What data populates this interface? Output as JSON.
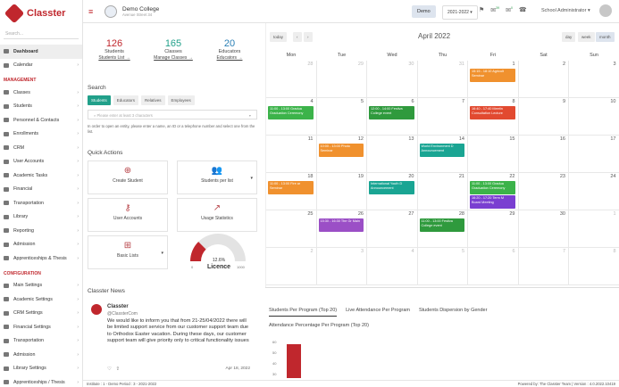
{
  "app": {
    "name": "Classter",
    "search_placeholder": "Search..."
  },
  "sidebar": {
    "items": [
      {
        "label": "Dashboard",
        "active": true
      },
      {
        "label": "Calendar"
      }
    ],
    "management_title": "MANAGEMENT",
    "management": [
      "Classes",
      "Students",
      "Personnel & Contacts",
      "Enrollments",
      "CRM",
      "User Accounts",
      "Academic Tasks",
      "Financial",
      "Transportation",
      "Library",
      "Reporting",
      "Admission",
      "Apprenticeships & Thesis"
    ],
    "configuration_title": "CONFIGURATION",
    "configuration": [
      "Main Settings",
      "Academic Settings",
      "CRM Settings",
      "Financial Settings",
      "Transportation",
      "Admission",
      "Library Settings",
      "Apprenticeships / Thesis"
    ]
  },
  "header": {
    "college": "Demo College",
    "address": "Avenue Street 34",
    "demo_btn": "Demo",
    "year": "2021-2022",
    "badge1": "39",
    "badge2": "0",
    "user": "School Administrator"
  },
  "stats": [
    {
      "n": "126",
      "label": "Students",
      "link": "Students List →"
    },
    {
      "n": "165",
      "label": "Classes",
      "link": "Manage Classes →"
    },
    {
      "n": "20",
      "label": "Educators",
      "link": "Educators →"
    }
  ],
  "search": {
    "title": "Search",
    "tabs": [
      "Students",
      "Educators",
      "Relatives",
      "Employees"
    ],
    "placeholder": "Please enter at least 3 characters",
    "hint": "In order to open an entity, please enter a name, an ID or a telephone number and select one from the list."
  },
  "quick": {
    "title": "Quick Actions",
    "items": [
      "Create Student",
      "Students per list",
      "User Accounts",
      "Usage Statistics",
      "Basic Lists"
    ]
  },
  "licence": {
    "value": "12.6%",
    "label": "Licence",
    "min": "0",
    "max": "1000",
    "fraction": 0.126
  },
  "news": {
    "title": "Classter News",
    "name": "Classter",
    "handle": "@ClassterCom",
    "text": "We would like to inform you that from 21-25/04/2022 there will be limited support service from our customer support team due to Orthodox Easter vacation. During these days, our customer support team will give priority only to critical functionality issues",
    "date": "Apr 18, 2022"
  },
  "calendar": {
    "today": "today",
    "prev": "‹",
    "next": "›",
    "title": "April 2022",
    "views": [
      "day",
      "week",
      "month"
    ],
    "dow": [
      "Mon",
      "Tue",
      "Wed",
      "Thu",
      "Fri",
      "Sat",
      "Sun"
    ],
    "weeks": [
      [
        "28",
        "29",
        "30",
        "31",
        "1",
        "2",
        "3"
      ],
      [
        "4",
        "5",
        "6",
        "7",
        "8",
        "9",
        "10"
      ],
      [
        "11",
        "12",
        "13",
        "14",
        "15",
        "16",
        "17"
      ],
      [
        "18",
        "19",
        "20",
        "21",
        "22",
        "23",
        "24"
      ],
      [
        "25",
        "26",
        "27",
        "28",
        "29",
        "30",
        "1"
      ],
      [
        "2",
        "3",
        "4",
        "5",
        "6",
        "7",
        "8"
      ]
    ],
    "events": [
      {
        "w": 0,
        "d": 4,
        "i": 0,
        "text": "15:15 - 18:10 Agricult Seminar",
        "color": "#f0912e"
      },
      {
        "w": 1,
        "d": 0,
        "i": 0,
        "text": "11:00 - 13:00 Gradua Graduation Ceremony",
        "color": "#3cb34a"
      },
      {
        "w": 1,
        "d": 2,
        "i": 0,
        "text": "12:00 - 14:00 Festiva College event",
        "color": "#2f9a3d"
      },
      {
        "w": 1,
        "d": 4,
        "i": 0,
        "text": "16:40 - 17:40 Meetin Consultation Lecture",
        "color": "#e24a30"
      },
      {
        "w": 2,
        "d": 1,
        "i": 0,
        "text": "10:00 - 13:00 Photo Seminar",
        "color": "#f0912e"
      },
      {
        "w": 2,
        "d": 3,
        "i": 0,
        "text": "World Environment D Announcement",
        "color": "#1aa593"
      },
      {
        "w": 3,
        "d": 0,
        "i": 0,
        "text": "11:00 - 13:00 Fire ar Seminar",
        "color": "#f0912e"
      },
      {
        "w": 3,
        "d": 2,
        "i": 0,
        "text": "International Youth D Announcement",
        "color": "#1aa593"
      },
      {
        "w": 3,
        "d": 4,
        "i": 0,
        "text": "11:00 - 13:00 Gradua Graduation Ceremony",
        "color": "#3cb34a"
      },
      {
        "w": 3,
        "d": 4,
        "i": 1,
        "text": "16:20 - 17:20 Term M Board Meeting",
        "color": "#7a3fd1"
      },
      {
        "w": 4,
        "d": 1,
        "i": 0,
        "text": "15:30 - 16:30 The Gr Main",
        "color": "#9b4fc6"
      },
      {
        "w": 4,
        "d": 3,
        "i": 0,
        "text": "11:00 - 13:00 Festiva College event",
        "color": "#2f9a3d"
      }
    ]
  },
  "bottom": {
    "tabs": [
      "Students Per Program (Top 20)",
      "Live Attendance Per Program",
      "Students Dispersion by Gender"
    ],
    "chart_title": "Attendance Percentage Per Program (Top 20)",
    "yticks": [
      "60",
      "50",
      "40",
      "30"
    ]
  },
  "footer": {
    "left": "Institute : 1 - Demo Period : 3 - 2021-2022",
    "right": "Powered by: The Classter Team | Version : 4.0.2022.10419"
  }
}
